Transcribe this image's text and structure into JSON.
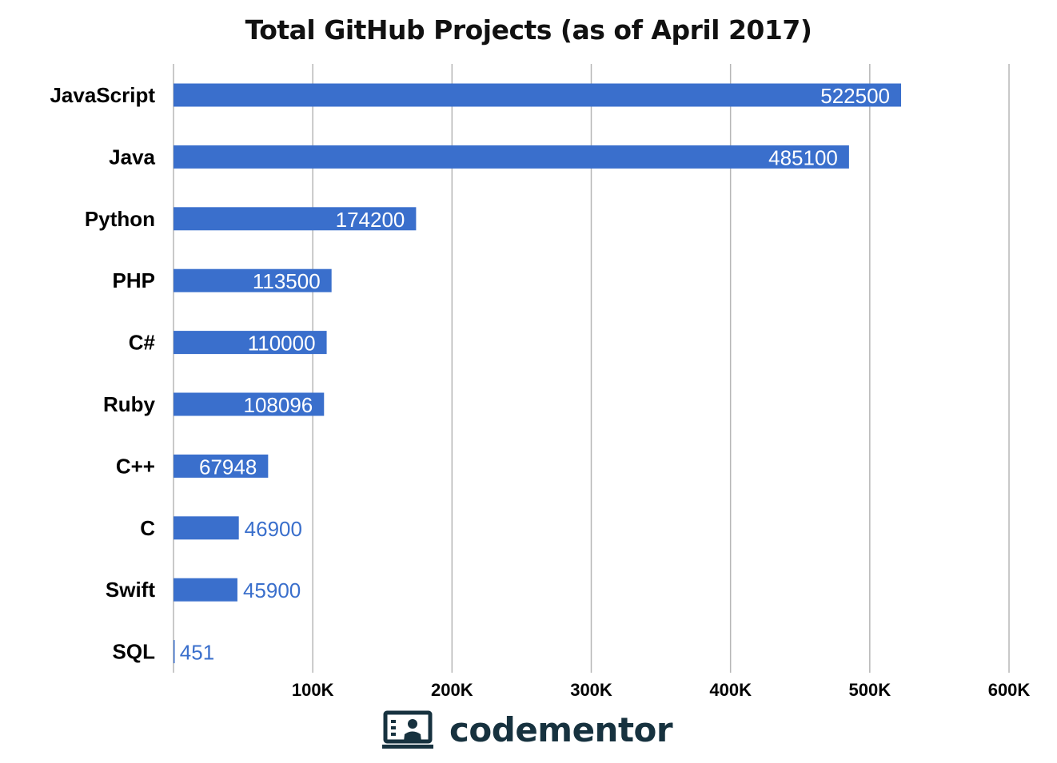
{
  "chart_data": {
    "type": "bar",
    "orientation": "horizontal",
    "title": "Total GitHub Projects (as of April 2017)",
    "xlabel": "",
    "ylabel": "",
    "categories": [
      "JavaScript",
      "Java",
      "Python",
      "PHP",
      "C#",
      "Ruby",
      "C++",
      "C",
      "Swift",
      "SQL"
    ],
    "values": [
      522500,
      485100,
      174200,
      113500,
      110000,
      108096,
      67948,
      46900,
      45900,
      451
    ],
    "data_labels": [
      "522500",
      "485100",
      "174200",
      "113500",
      "110000",
      "108096",
      "67948",
      "46900",
      "45900",
      "451"
    ],
    "xlim": [
      0,
      600000
    ],
    "x_ticks": [
      100000,
      200000,
      300000,
      400000,
      500000,
      600000
    ],
    "x_tick_labels": [
      "100K",
      "200K",
      "300K",
      "400K",
      "500K",
      "600K"
    ],
    "grid": "vertical",
    "legend": "none",
    "colors": {
      "bar": "#3a6fcc",
      "label_inside": "#ffffff",
      "label_outside": "#3a6fcc",
      "grid": "#b7b7b7"
    }
  },
  "logo": {
    "text": "codementor",
    "icon": "presenter-board-icon",
    "color": "#17323f"
  }
}
